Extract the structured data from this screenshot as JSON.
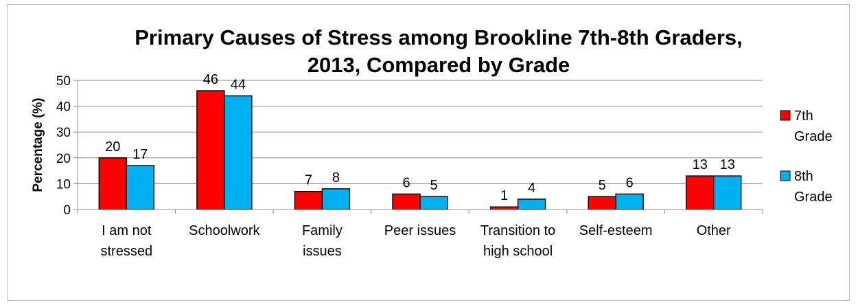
{
  "chart_data": {
    "type": "bar",
    "title": "Primary Causes of Stress among Brookline 7th-8th Graders, 2013, Compared by Grade",
    "title_lines": [
      "Primary Causes of Stress among Brookline 7th-8th Graders,",
      "2013, Compared by Grade"
    ],
    "xlabel": "",
    "ylabel": "Percentage (%)",
    "ylim": [
      0,
      50
    ],
    "yticks": [
      0,
      10,
      20,
      30,
      40,
      50
    ],
    "grid": true,
    "legend_position": "right",
    "categories": [
      "I am not stressed",
      "Schoolwork",
      "Family issues",
      "Peer issues",
      "Transition to high school",
      "Self-esteem",
      "Other"
    ],
    "category_lines": [
      [
        "I am not",
        "stressed"
      ],
      [
        "Schoolwork"
      ],
      [
        "Family",
        "issues"
      ],
      [
        "Peer issues"
      ],
      [
        "Transition to",
        "high school"
      ],
      [
        "Self-esteem"
      ],
      [
        "Other"
      ]
    ],
    "series": [
      {
        "name": "7th Grade",
        "legend_lines": [
          "7th",
          "Grade"
        ],
        "color": "#ff0000",
        "values": [
          20,
          46,
          7,
          6,
          1,
          5,
          13
        ]
      },
      {
        "name": "8th Grade",
        "legend_lines": [
          "8th",
          "Grade"
        ],
        "color": "#00b0f0",
        "values": [
          17,
          44,
          8,
          5,
          4,
          6,
          13
        ]
      }
    ],
    "data_labels": true
  }
}
